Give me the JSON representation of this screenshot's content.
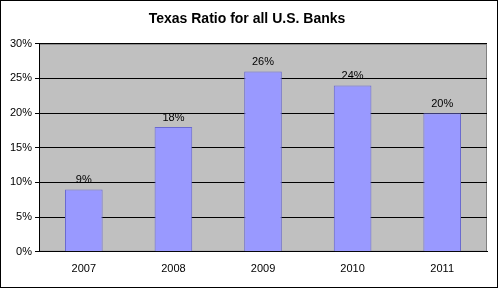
{
  "chart_data": {
    "type": "bar",
    "title": "Texas Ratio for all U.S. Banks",
    "categories": [
      "2007",
      "2008",
      "2009",
      "2010",
      "2011"
    ],
    "values": [
      9,
      18,
      26,
      24,
      20
    ],
    "value_labels": [
      "9%",
      "18%",
      "26%",
      "24%",
      "20%"
    ],
    "data_labels": true,
    "color": "#9999ff",
    "ylim": [
      0,
      30
    ],
    "yticks": [
      {
        "value": 0,
        "label": "0%"
      },
      {
        "value": 5,
        "label": "5%"
      },
      {
        "value": 10,
        "label": "10%"
      },
      {
        "value": 15,
        "label": "15%"
      },
      {
        "value": 20,
        "label": "20%"
      },
      {
        "value": 25,
        "label": "25%"
      },
      {
        "value": 30,
        "label": "30%"
      }
    ],
    "grid": true
  }
}
